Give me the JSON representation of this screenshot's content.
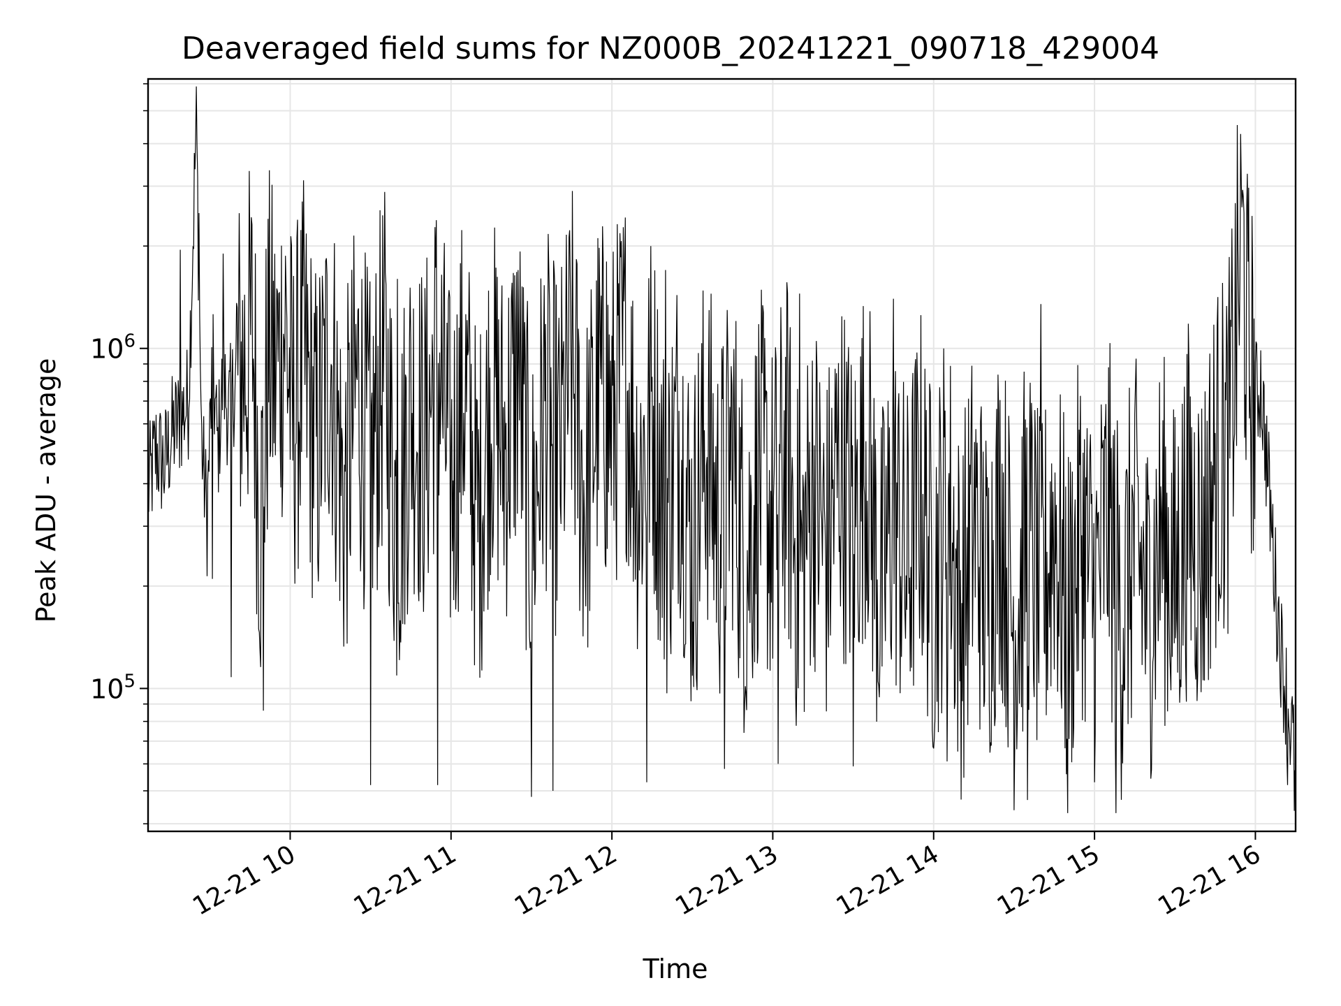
{
  "chart_data": {
    "type": "line",
    "title": "Deaveraged field sums for NZ000B_20241221_090718_429004",
    "xlabel": "Time",
    "ylabel": "Peak ADU - average",
    "yscale": "log",
    "x_range": [
      "12-21 09:07",
      "12-21 16:15"
    ],
    "ylim": [
      38000,
      6200000
    ],
    "x_ticks": [
      "12-21 10",
      "12-21 11",
      "12-21 12",
      "12-21 13",
      "12-21 14",
      "12-21 15",
      "12-21 16"
    ],
    "y_ticks": [
      {
        "base": "10",
        "exp": "5",
        "value": 100000
      },
      {
        "base": "10",
        "exp": "6",
        "value": 1000000
      }
    ],
    "grid": true,
    "legend": "none",
    "line_color": "#000000",
    "series": [
      {
        "x": [
          "09:07",
          "09:10",
          "09:13",
          "09:16",
          "09:19",
          "09:22",
          "09:25",
          "09:27",
          "09:29",
          "09:31",
          "09:33",
          "09:35",
          "09:37",
          "09:40",
          "09:43",
          "09:46",
          "09:49",
          "09:52",
          "09:55",
          "09:58",
          "10:01",
          "10:05",
          "10:10",
          "10:15",
          "10:20",
          "10:25",
          "10:30",
          "10:35",
          "10:40",
          "10:45",
          "10:50",
          "10:55",
          "11:00",
          "11:05",
          "11:10",
          "11:15",
          "11:20",
          "11:25",
          "11:30",
          "11:35",
          "11:40",
          "11:45",
          "11:50",
          "11:55",
          "12:00",
          "12:05",
          "12:10",
          "12:15",
          "12:20",
          "12:25",
          "12:30",
          "12:35",
          "12:40",
          "12:45",
          "12:50",
          "12:55",
          "13:00",
          "13:05",
          "13:10",
          "13:15",
          "13:20",
          "13:25",
          "13:30",
          "13:35",
          "13:40",
          "13:45",
          "13:50",
          "13:55",
          "14:00",
          "14:05",
          "14:10",
          "14:15",
          "14:20",
          "14:25",
          "14:30",
          "14:35",
          "14:40",
          "14:45",
          "14:50",
          "14:55",
          "15:00",
          "15:05",
          "15:10",
          "15:15",
          "15:20",
          "15:25",
          "15:30",
          "15:35",
          "15:40",
          "15:45",
          "15:50",
          "15:53",
          "15:55",
          "15:57",
          "16:00",
          "16:02",
          "16:04",
          "16:06",
          "16:08",
          "16:10",
          "16:12",
          "16:14",
          "16:15"
        ],
        "y": [
          380000,
          500000,
          450000,
          560000,
          620000,
          700000,
          4700000,
          520000,
          320000,
          900000,
          500000,
          820000,
          640000,
          850000,
          900000,
          1100000,
          300000,
          1000000,
          800000,
          1200000,
          600000,
          900000,
          500000,
          1000000,
          350000,
          800000,
          450000,
          900000,
          300000,
          700000,
          500000,
          1000000,
          400000,
          800000,
          300000,
          750000,
          500000,
          850000,
          280000,
          700000,
          450000,
          900000,
          350000,
          750000,
          600000,
          900000,
          400000,
          700000,
          300000,
          600000,
          250000,
          550000,
          300000,
          500000,
          220000,
          450000,
          300000,
          500000,
          200000,
          420000,
          250000,
          480000,
          300000,
          520000,
          180000,
          350000,
          220000,
          400000,
          200000,
          380000,
          160000,
          320000,
          180000,
          350000,
          150000,
          300000,
          170000,
          320000,
          150000,
          300000,
          180000,
          330000,
          160000,
          280000,
          170000,
          300000,
          200000,
          350000,
          250000,
          450000,
          500000,
          1200000,
          2200000,
          1000000,
          700000,
          800000,
          500000,
          300000,
          180000,
          120000,
          90000,
          70000,
          45000
        ]
      }
    ],
    "annotations": {
      "spikes_high": [
        {
          "x": "09:19",
          "y": 1950000
        },
        {
          "x": "09:26",
          "y": 2500000
        },
        {
          "x": "09:35",
          "y": 1900000
        },
        {
          "x": "09:55",
          "y": 1500000
        },
        {
          "x": "10:40",
          "y": 1600000
        },
        {
          "x": "11:25",
          "y": 1700000
        },
        {
          "x": "11:58",
          "y": 1800000
        },
        {
          "x": "12:20",
          "y": 1700000
        },
        {
          "x": "13:10",
          "y": 1450000
        },
        {
          "x": "13:45",
          "y": 1400000
        },
        {
          "x": "14:40",
          "y": 1350000
        },
        {
          "x": "15:55",
          "y": 2600000
        }
      ],
      "spikes_low": [
        {
          "x": "09:31",
          "y": 210000
        },
        {
          "x": "09:38",
          "y": 108000
        },
        {
          "x": "09:50",
          "y": 86000
        },
        {
          "x": "10:30",
          "y": 52000
        },
        {
          "x": "10:55",
          "y": 52000
        },
        {
          "x": "11:30",
          "y": 48000
        },
        {
          "x": "11:38",
          "y": 50000
        },
        {
          "x": "12:13",
          "y": 53000
        },
        {
          "x": "12:42",
          "y": 58000
        },
        {
          "x": "13:02",
          "y": 60000
        },
        {
          "x": "13:30",
          "y": 59000
        },
        {
          "x": "14:05",
          "y": 61000
        },
        {
          "x": "14:35",
          "y": 47000
        },
        {
          "x": "14:50",
          "y": 43000
        },
        {
          "x": "15:08",
          "y": 43000
        },
        {
          "x": "16:12",
          "y": 52000
        }
      ]
    }
  }
}
